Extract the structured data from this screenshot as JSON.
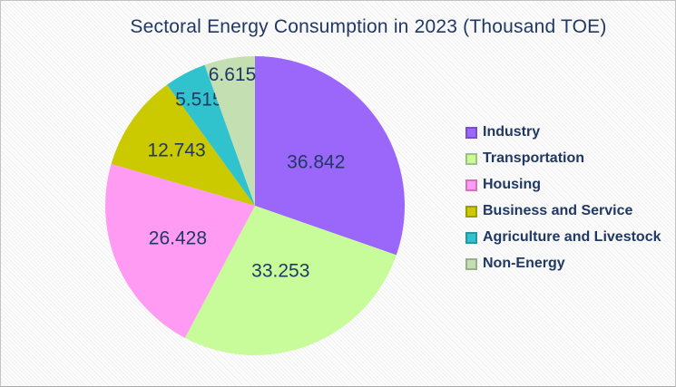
{
  "title": "Sectoral Energy Consumption in 2023 (Thousand TOE)",
  "colors": {
    "text": "#1F3864",
    "slide_border": "#c3c3c3"
  },
  "chart_data": {
    "type": "pie",
    "title": "Sectoral Energy Consumption in 2023 (Thousand TOE)",
    "unit": "Thousand TOE",
    "start_angle_deg": 0,
    "direction": "clockwise",
    "legend_position": "right",
    "slices": [
      {
        "label": "Industry",
        "value": 36.842,
        "display_value": "36.842",
        "color": "#9A67FA"
      },
      {
        "label": "Transportation",
        "value": 33.253,
        "display_value": "33.253",
        "color": "#C8FB99"
      },
      {
        "label": "Housing",
        "value": 26.428,
        "display_value": "26.428",
        "color": "#FF9BF3"
      },
      {
        "label": "Business and Service",
        "value": 12.743,
        "display_value": "12.743",
        "color": "#CBC900"
      },
      {
        "label": "Agriculture and Livestock",
        "value": 5.515,
        "display_value": "5.515",
        "color": "#30C3CE"
      },
      {
        "label": "Non-Energy",
        "value": 6.615,
        "display_value": "6.615",
        "color": "#C4E0B3"
      }
    ]
  }
}
